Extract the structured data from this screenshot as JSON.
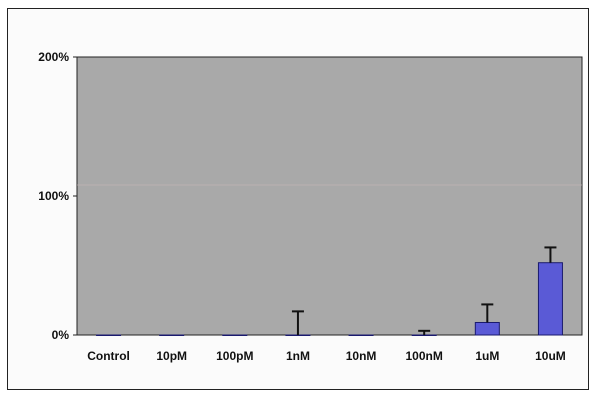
{
  "chart_data": {
    "type": "bar",
    "categories": [
      "Control",
      "10pM",
      "100pM",
      "1nM",
      "10nM",
      "100nM",
      "1uM",
      "10uM"
    ],
    "values": [
      0,
      0,
      0,
      0,
      0,
      0,
      9,
      52
    ],
    "errors": [
      0,
      0,
      0,
      17,
      0,
      3,
      13,
      11
    ],
    "ylim": [
      0,
      200
    ],
    "yticks": [
      {
        "value": 0,
        "label": "0%"
      },
      {
        "value": 100,
        "label": "100%"
      },
      {
        "value": 200,
        "label": "200%"
      }
    ],
    "grid": false,
    "colors": {
      "plot_background": "#a9a9a9",
      "bar_fill": "#5a5ad6",
      "bar_edge": "#1a1a6e",
      "axis": "#222222"
    }
  }
}
